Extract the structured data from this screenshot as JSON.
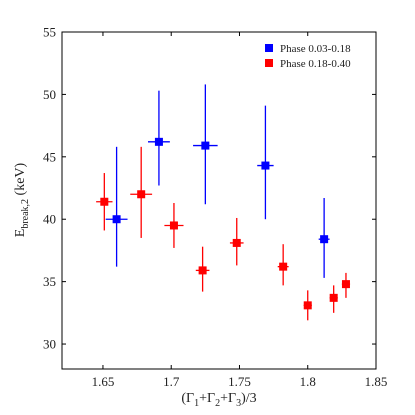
{
  "chart_data": {
    "type": "scatter",
    "title": "",
    "xlabel": "(Γ1+Γ2+Γ3)/3",
    "ylabel": "Ebreak,2 (keV)",
    "xlim": [
      1.62,
      1.85
    ],
    "ylim": [
      28,
      55
    ],
    "xticks": [
      1.65,
      1.7,
      1.75,
      1.8,
      1.85
    ],
    "xtick_labels": [
      "1.65",
      "1.7",
      "1.75",
      "1.8",
      "1.85"
    ],
    "yticks": [
      30,
      35,
      40,
      45,
      50,
      55
    ],
    "ytick_labels": [
      "30",
      "35",
      "40",
      "45",
      "50",
      "55"
    ],
    "grid": false,
    "legend_position": "top-right",
    "series": [
      {
        "name": "Phase 0.03-0.18",
        "color": "#0000ff",
        "marker": "square",
        "points": [
          {
            "x": 1.66,
            "xerr": 0.008,
            "y": 40.0,
            "ylo": 36.2,
            "yhi": 45.8
          },
          {
            "x": 1.691,
            "xerr": 0.008,
            "y": 46.2,
            "ylo": 42.7,
            "yhi": 50.3
          },
          {
            "x": 1.725,
            "xerr": 0.009,
            "y": 45.9,
            "ylo": 41.2,
            "yhi": 50.8
          },
          {
            "x": 1.769,
            "xerr": 0.006,
            "y": 44.3,
            "ylo": 40.0,
            "yhi": 49.1
          },
          {
            "x": 1.812,
            "xerr": 0.004,
            "y": 38.4,
            "ylo": 35.3,
            "yhi": 41.7
          }
        ]
      },
      {
        "name": "Phase 0.18-0.40",
        "color": "#ff0000",
        "marker": "square",
        "points": [
          {
            "x": 1.651,
            "xerr": 0.006,
            "y": 41.4,
            "ylo": 39.1,
            "yhi": 43.7
          },
          {
            "x": 1.678,
            "xerr": 0.008,
            "y": 42.0,
            "ylo": 38.5,
            "yhi": 45.8
          },
          {
            "x": 1.702,
            "xerr": 0.007,
            "y": 39.5,
            "ylo": 37.7,
            "yhi": 41.3
          },
          {
            "x": 1.723,
            "xerr": 0.005,
            "y": 35.9,
            "ylo": 34.2,
            "yhi": 37.8
          },
          {
            "x": 1.748,
            "xerr": 0.005,
            "y": 38.1,
            "ylo": 36.3,
            "yhi": 40.1
          },
          {
            "x": 1.782,
            "xerr": 0.004,
            "y": 36.2,
            "ylo": 34.7,
            "yhi": 38.0
          },
          {
            "x": 1.8,
            "xerr": 0.003,
            "y": 33.1,
            "ylo": 31.9,
            "yhi": 34.3
          },
          {
            "x": 1.819,
            "xerr": 0.003,
            "y": 33.7,
            "ylo": 32.5,
            "yhi": 34.7
          },
          {
            "x": 1.828,
            "xerr": 0.003,
            "y": 34.8,
            "ylo": 33.7,
            "yhi": 35.7
          }
        ]
      }
    ]
  }
}
